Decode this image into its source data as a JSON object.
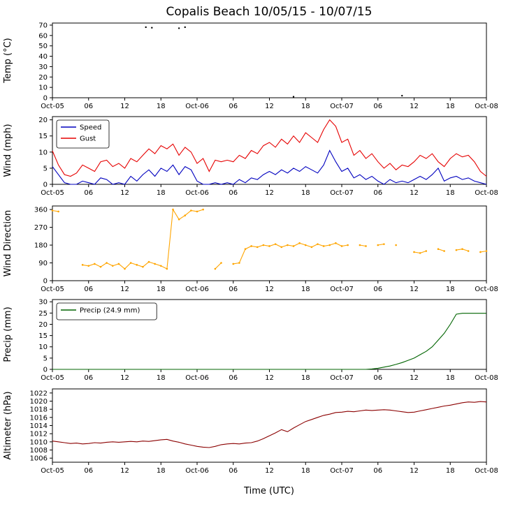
{
  "title": "Copalis Beach 10/05/15 - 10/07/15",
  "x_axis": {
    "label": "Time (UTC)",
    "range_hours": [
      0,
      72
    ],
    "tick_hours": [
      0,
      6,
      12,
      18,
      24,
      30,
      36,
      42,
      48,
      54,
      60,
      66,
      72
    ],
    "tick_labels": [
      "Oct-05",
      "06",
      "12",
      "18",
      "Oct-06",
      "06",
      "12",
      "18",
      "Oct-07",
      "06",
      "12",
      "18",
      "Oct-08"
    ]
  },
  "colors": {
    "speed": "#0000bf",
    "gust": "#e60000",
    "direction": "#ffa500",
    "precip": "#006400",
    "altimeter": "#8b0000",
    "axis": "#000000"
  },
  "chart_data": [
    {
      "id": "temp",
      "type": "scatter",
      "ylabel": "Temp (°C)",
      "ylim": [
        0,
        72
      ],
      "yticks": [
        0,
        10,
        20,
        30,
        40,
        50,
        60,
        70
      ],
      "series": [
        {
          "name": "Temp",
          "type": "scatter",
          "color": "#000000",
          "points": [
            [
              15.5,
              68
            ],
            [
              16.5,
              67.5
            ],
            [
              21,
              67
            ],
            [
              22,
              68
            ],
            [
              40,
              1
            ],
            [
              58,
              2
            ]
          ]
        }
      ]
    },
    {
      "id": "wind",
      "type": "line",
      "ylabel": "Wind (mph)",
      "ylim": [
        0,
        21
      ],
      "yticks": [
        0,
        5,
        10,
        15,
        20
      ],
      "legend": true,
      "series": [
        {
          "name": "Speed",
          "type": "line",
          "color": "#0000bf",
          "values": [
            5.5,
            3,
            0.5,
            0,
            0,
            1,
            0.5,
            0,
            2,
            1.5,
            0,
            0.5,
            0,
            2.5,
            1,
            3,
            4.5,
            2.5,
            5,
            4,
            6,
            3,
            5.5,
            4.5,
            1,
            0,
            0,
            0.5,
            0,
            0.5,
            0,
            1.5,
            0.5,
            2,
            1.5,
            3,
            4,
            3,
            4.5,
            3.5,
            5,
            4,
            5.5,
            4.5,
            3.5,
            6,
            10.5,
            7,
            4,
            5,
            2,
            3,
            1.5,
            2.5,
            1,
            0,
            1.5,
            0.5,
            1,
            0.5,
            1.5,
            2.5,
            1.5,
            3,
            5,
            1,
            2,
            2.5,
            1.5,
            2,
            1,
            0.5,
            0
          ]
        },
        {
          "name": "Gust",
          "type": "line",
          "color": "#e60000",
          "values": [
            10.4,
            6,
            3,
            2.5,
            3.5,
            6,
            5,
            4,
            7,
            7.5,
            5.5,
            6.5,
            5,
            8,
            7,
            9,
            11,
            9.5,
            12,
            11,
            12.5,
            9,
            11.5,
            10,
            6.5,
            8,
            4,
            7.5,
            7,
            7.5,
            7,
            9,
            8,
            10.5,
            9.5,
            12,
            13,
            11.5,
            14,
            12.5,
            15,
            13,
            16,
            14.5,
            13,
            17,
            20,
            18,
            13,
            14,
            9,
            10.5,
            8,
            9.5,
            7,
            5,
            6.5,
            4.5,
            6,
            5.5,
            7,
            9,
            8,
            9.5,
            7,
            5.5,
            8,
            9.5,
            8.5,
            9,
            7,
            4,
            2.5
          ]
        }
      ]
    },
    {
      "id": "wind-direction",
      "type": "line",
      "ylabel": "Wind Direction",
      "ylim": [
        0,
        378
      ],
      "yticks": [
        0,
        90,
        180,
        270,
        360
      ],
      "series": [
        {
          "name": "Direction",
          "type": "line-markers",
          "color": "#ffa500",
          "values": [
            355,
            350,
            null,
            null,
            null,
            80,
            75,
            85,
            70,
            90,
            75,
            85,
            60,
            90,
            80,
            70,
            95,
            85,
            75,
            60,
            360,
            310,
            330,
            355,
            350,
            360,
            null,
            60,
            90,
            null,
            85,
            90,
            160,
            175,
            170,
            180,
            175,
            185,
            170,
            180,
            175,
            190,
            180,
            170,
            185,
            175,
            180,
            190,
            175,
            180,
            null,
            180,
            175,
            null,
            180,
            185,
            null,
            180,
            null,
            null,
            145,
            140,
            150,
            null,
            160,
            150,
            null,
            155,
            160,
            150,
            null,
            145,
            150
          ]
        }
      ]
    },
    {
      "id": "precip",
      "type": "line",
      "ylabel": "Precip (mm)",
      "ylim": [
        0,
        31
      ],
      "yticks": [
        0,
        5,
        10,
        15,
        20,
        25,
        30
      ],
      "legend": true,
      "series": [
        {
          "name": "Precip (24.9 mm)",
          "type": "line",
          "color": "#006400",
          "values": [
            0,
            0,
            0,
            0,
            0,
            0,
            0,
            0,
            0,
            0,
            0,
            0,
            0,
            0,
            0,
            0,
            0,
            0,
            0,
            0,
            0,
            0,
            0,
            0,
            0,
            0,
            0,
            0,
            0,
            0,
            0,
            0,
            0,
            0,
            0,
            0,
            0,
            0,
            0,
            0,
            0,
            0,
            0,
            0,
            0,
            0,
            0,
            0,
            0,
            0,
            0,
            0,
            0,
            0.2,
            0.5,
            1.0,
            1.5,
            2.2,
            3.0,
            4.0,
            5.0,
            6.5,
            8.0,
            10.0,
            13.0,
            16.0,
            20.0,
            24.5,
            24.9,
            24.9,
            24.9,
            24.9,
            24.9
          ]
        }
      ]
    },
    {
      "id": "altimeter",
      "type": "line",
      "ylabel": "Altimeter (hPa)",
      "ylim": [
        1005,
        1023
      ],
      "yticks": [
        1006,
        1008,
        1010,
        1012,
        1014,
        1016,
        1018,
        1020,
        1022
      ],
      "series": [
        {
          "name": "Altimeter",
          "type": "line",
          "color": "#8b0000",
          "values": [
            1010.2,
            1010.0,
            1009.8,
            1009.6,
            1009.7,
            1009.5,
            1009.6,
            1009.8,
            1009.7,
            1009.9,
            1010.0,
            1009.9,
            1010.0,
            1010.1,
            1010.0,
            1010.2,
            1010.1,
            1010.3,
            1010.5,
            1010.6,
            1010.2,
            1009.9,
            1009.5,
            1009.2,
            1008.9,
            1008.7,
            1008.6,
            1008.9,
            1009.3,
            1009.5,
            1009.6,
            1009.5,
            1009.7,
            1009.8,
            1010.2,
            1010.8,
            1011.5,
            1012.2,
            1013.0,
            1012.5,
            1013.4,
            1014.2,
            1015.0,
            1015.5,
            1016.0,
            1016.5,
            1016.8,
            1017.2,
            1017.3,
            1017.5,
            1017.4,
            1017.6,
            1017.8,
            1017.7,
            1017.8,
            1017.9,
            1017.8,
            1017.6,
            1017.4,
            1017.2,
            1017.3,
            1017.6,
            1017.9,
            1018.2,
            1018.5,
            1018.8,
            1019.0,
            1019.3,
            1019.6,
            1019.8,
            1019.7,
            1019.9,
            1019.8
          ]
        }
      ]
    }
  ]
}
